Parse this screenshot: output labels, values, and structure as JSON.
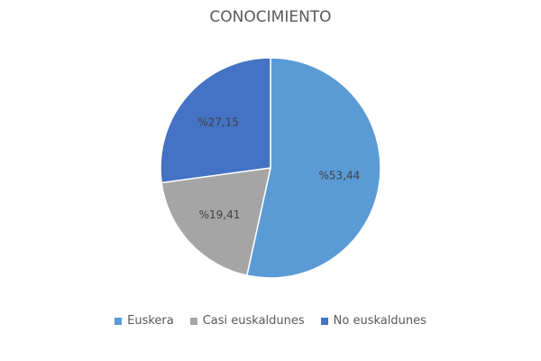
{
  "chart_data": {
    "type": "pie",
    "title": "CONOCIMIENTO",
    "categories": [
      "Euskera",
      "Casi euskaldunes",
      "No euskaldunes"
    ],
    "values": [
      53.44,
      19.41,
      27.15
    ],
    "labels": [
      "%53,44",
      "%19,41",
      "%27,15"
    ],
    "colors": [
      "#5B9BD5",
      "#A5A5A5",
      "#4472C4"
    ],
    "legend_position": "bottom"
  }
}
